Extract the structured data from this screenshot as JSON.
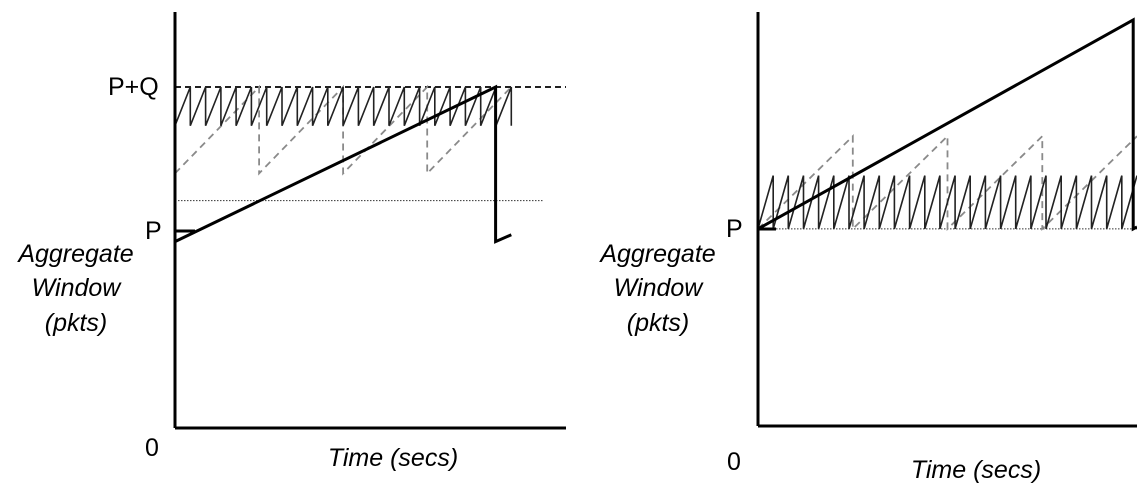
{
  "chart_data": [
    {
      "type": "line",
      "panel": "left",
      "title": "",
      "xlabel": "Time (secs)",
      "ylabel_lines": [
        "Aggregate",
        "Window",
        "(pkts)"
      ],
      "y_tick_labels": {
        "zero": "0",
        "p": "P",
        "pq": "P+Q"
      },
      "y_levels": {
        "zero": 0,
        "p": 1.0,
        "pq": 1.5
      },
      "xlim": [
        0,
        10
      ],
      "ylim": [
        0,
        1.83
      ],
      "colors": {
        "aggregate": "#000000",
        "fine": "#222222",
        "dashed": "#8a8a8a"
      },
      "series": [
        {
          "role": "aggregate",
          "style": "solid-thick",
          "points": [
            [
              0,
              0.82
            ],
            [
              8.2,
              1.5
            ],
            [
              8.2,
              0.82
            ],
            [
              8.6,
              0.85
            ]
          ]
        },
        {
          "role": "fine-sawtooth",
          "style": "solid-thin",
          "x_start": 0,
          "x_end": 8.6,
          "low": 1.33,
          "high": 1.5,
          "cycles": 22,
          "close": true
        },
        {
          "role": "coarse-sawtooth",
          "style": "dashed",
          "x_start": 0,
          "x_end": 8.6,
          "low": 1.12,
          "high": 1.5,
          "cycles": 4,
          "close": false
        }
      ],
      "reference_lines": [
        {
          "level": "pq",
          "style": "dashed",
          "x_end": 10
        },
        {
          "level": "p",
          "style": "dotted",
          "x_end": 9.4
        }
      ]
    },
    {
      "type": "line",
      "panel": "right",
      "title": "",
      "xlabel": "Time (secs)",
      "ylabel_lines": [
        "Aggregate",
        "Window",
        "(pkts)"
      ],
      "y_tick_labels": {
        "zero": "0",
        "p": "P"
      },
      "y_levels": {
        "zero": 0,
        "p": 1.0
      },
      "xlim": [
        0,
        10
      ],
      "ylim": [
        0,
        2.1
      ],
      "colors": {
        "aggregate": "#000000",
        "fine": "#222222",
        "dashed": "#8a8a8a"
      },
      "series": [
        {
          "role": "aggregate",
          "style": "solid-thick",
          "points": [
            [
              0,
              1.0
            ],
            [
              9.9,
              2.06
            ],
            [
              9.9,
              1.0
            ],
            [
              10,
              1.01
            ]
          ]
        },
        {
          "role": "fine-sawtooth",
          "style": "solid-thin",
          "x_start": 0,
          "x_end": 10,
          "low": 1.0,
          "high": 1.27,
          "cycles": 25,
          "close": false
        },
        {
          "role": "coarse-sawtooth",
          "style": "dashed",
          "x_start": 0,
          "x_end": 10,
          "low": 1.0,
          "high": 1.47,
          "cycles": 4,
          "close": false
        }
      ],
      "reference_lines": [
        {
          "level": "p",
          "style": "dotted",
          "x_end": 10
        }
      ]
    }
  ]
}
